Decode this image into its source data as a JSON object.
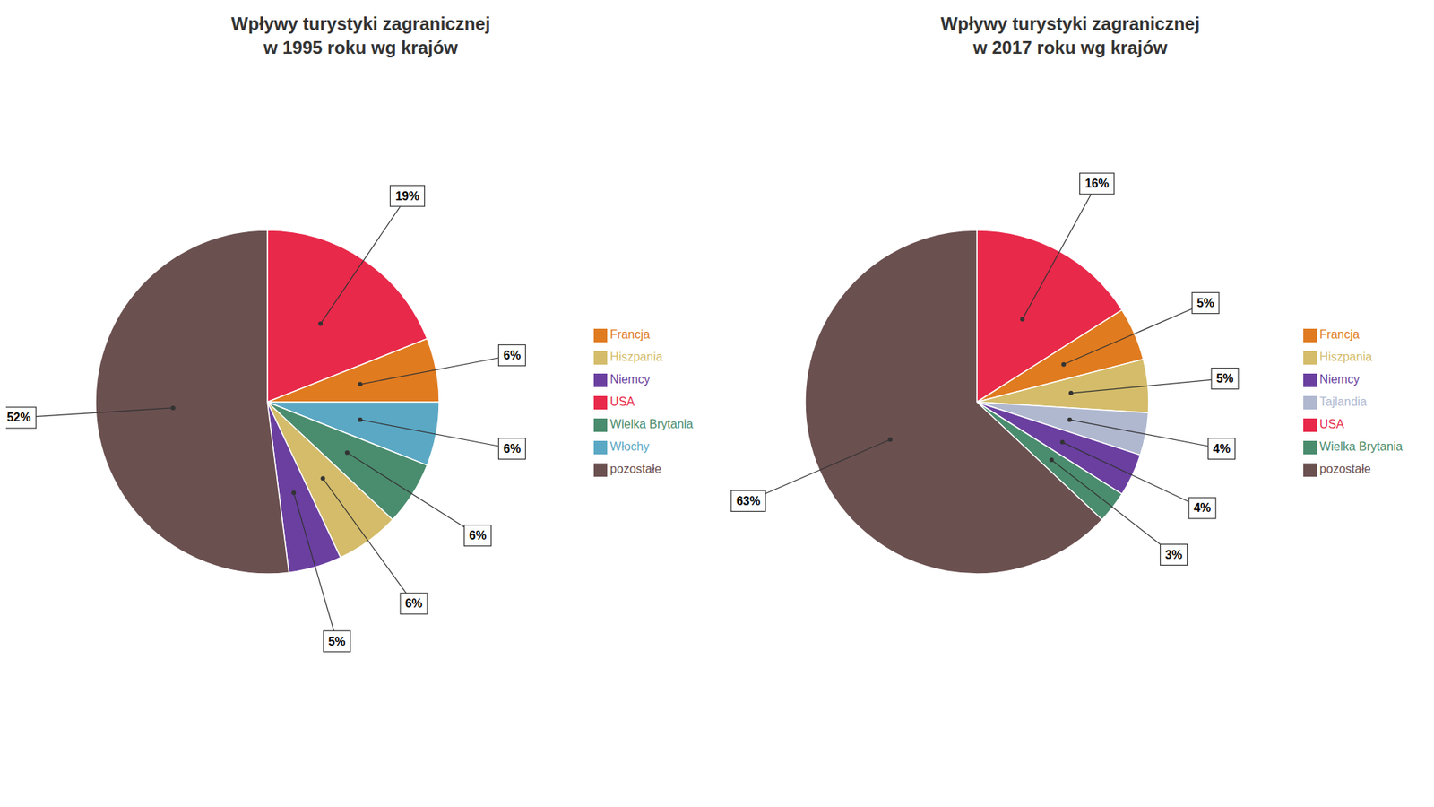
{
  "chart_data": [
    {
      "type": "pie",
      "title": "Wpływy turystyki zagranicznej\nw 1995 roku wg krajów",
      "categories": [
        "USA",
        "Francja",
        "Włochy",
        "Wielka Brytania",
        "Hiszpania",
        "Niemcy",
        "pozostałe"
      ],
      "values": [
        19,
        6,
        6,
        6,
        6,
        5,
        52
      ],
      "value_labels": [
        "19%",
        "6%",
        "6%",
        "6%",
        "6%",
        "5%",
        "52%"
      ],
      "colors": [
        "#e8294a",
        "#e07b20",
        "#5ba8c4",
        "#4a8c6e",
        "#d4bc6a",
        "#6a3fa0",
        "#6b5050"
      ],
      "data_labels": true,
      "legend": "right"
    },
    {
      "type": "pie",
      "title": "Wpływy turystyki zagranicznej\nw 2017 roku wg krajów",
      "categories": [
        "USA",
        "Francja",
        "Hiszpania",
        "Tajlandia",
        "Niemcy",
        "Wielka Brytania",
        "pozostałe"
      ],
      "values": [
        16,
        5,
        5,
        4,
        4,
        3,
        63
      ],
      "value_labels": [
        "16%",
        "5%",
        "5%",
        "4%",
        "4%",
        "3%",
        "63%"
      ],
      "colors": [
        "#e8294a",
        "#e07b20",
        "#d4bc6a",
        "#b0b8d0",
        "#6a3fa0",
        "#4a8c6e",
        "#6b5050"
      ],
      "data_labels": true,
      "legend": "right"
    }
  ]
}
